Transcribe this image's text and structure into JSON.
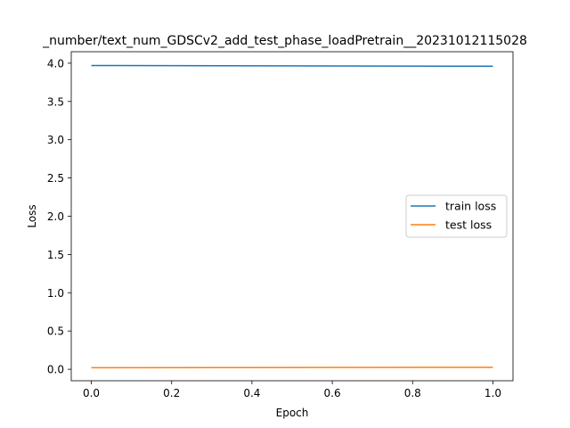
{
  "chart_data": {
    "type": "line",
    "title": "_number/text_num_GDSCv2_add_test_phase_loadPretrain__20231012115028",
    "xlabel": "Epoch",
    "ylabel": "Loss",
    "xlim": [
      -0.05,
      1.05
    ],
    "ylim": [
      -0.15,
      4.15
    ],
    "xticks": [
      0.0,
      0.2,
      0.4,
      0.6,
      0.8,
      1.0
    ],
    "xtick_labels": [
      "0.0",
      "0.2",
      "0.4",
      "0.6",
      "0.8",
      "1.0"
    ],
    "yticks": [
      0.0,
      0.5,
      1.0,
      1.5,
      2.0,
      2.5,
      3.0,
      3.5,
      4.0
    ],
    "ytick_labels": [
      "0.0",
      "0.5",
      "1.0",
      "1.5",
      "2.0",
      "2.5",
      "3.0",
      "3.5",
      "4.0"
    ],
    "grid": false,
    "legend_position": "center-right",
    "series": [
      {
        "name": "train loss",
        "color": "#1f77b4",
        "x": [
          0,
          1
        ],
        "y": [
          3.97,
          3.96
        ]
      },
      {
        "name": "test loss",
        "color": "#ff7f0e",
        "x": [
          0,
          1
        ],
        "y": [
          0.02,
          0.025
        ]
      }
    ]
  }
}
